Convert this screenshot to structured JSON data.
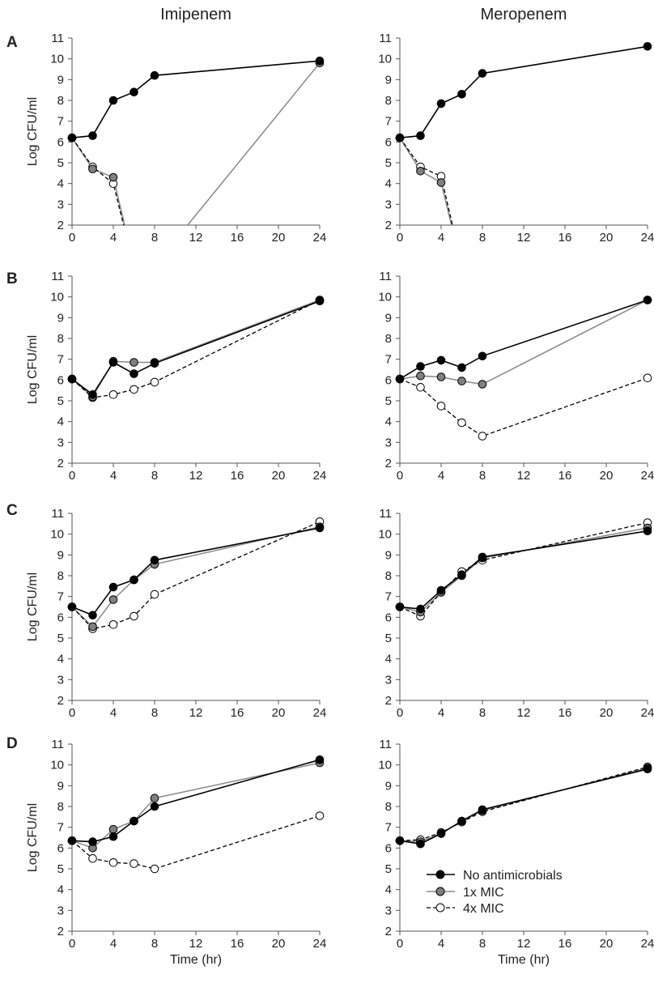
{
  "figure": {
    "column_titles": [
      "Imipenem",
      "Meropenem"
    ],
    "row_labels": [
      "A",
      "B",
      "C",
      "D"
    ],
    "ylabel": "Log CFU/ml",
    "xlabel": "Time (hr)",
    "legend": {
      "position": "bottom-right",
      "entries": [
        "No antimicrobials",
        "1x MIC",
        "4x MIC"
      ]
    },
    "colors": {
      "no_antimicrobials": "#000000",
      "mic1_line": "#888888",
      "mic1_marker": "#808080",
      "mic4_line": "#000000",
      "mic4_marker": "#ffffff",
      "axis": "#555555"
    }
  },
  "chart_data": [
    {
      "type": "line",
      "panel": "A",
      "column": "Imipenem",
      "x_ticks": [
        0,
        4,
        8,
        12,
        16,
        20,
        24
      ],
      "y_ticks": [
        2,
        3,
        4,
        5,
        6,
        7,
        8,
        9,
        10,
        11
      ],
      "xlim": [
        0,
        24
      ],
      "ylim": [
        2,
        11
      ],
      "grid": false,
      "series": [
        {
          "name": "No antimicrobials",
          "x": [
            0,
            2,
            4,
            6,
            8,
            24
          ],
          "y": [
            6.2,
            6.3,
            8.0,
            8.4,
            9.2,
            9.9
          ]
        },
        {
          "name": "1x MIC",
          "x": [
            0,
            2,
            4,
            5.1,
            11.2,
            24
          ],
          "y": [
            6.2,
            4.7,
            4.3,
            2.0,
            2.0,
            9.8
          ]
        },
        {
          "name": "4x MIC",
          "x": [
            0,
            2,
            4,
            5.0
          ],
          "y": [
            6.2,
            4.8,
            4.0,
            2.0
          ]
        }
      ]
    },
    {
      "type": "line",
      "panel": "A",
      "column": "Meropenem",
      "x_ticks": [
        0,
        4,
        8,
        12,
        16,
        20,
        24
      ],
      "y_ticks": [
        2,
        3,
        4,
        5,
        6,
        7,
        8,
        9,
        10,
        11
      ],
      "xlim": [
        0,
        24
      ],
      "ylim": [
        2,
        11
      ],
      "grid": false,
      "series": [
        {
          "name": "No antimicrobials",
          "x": [
            0,
            2,
            4,
            6,
            8,
            24
          ],
          "y": [
            6.2,
            6.3,
            7.85,
            8.3,
            9.3,
            10.6
          ]
        },
        {
          "name": "1x MIC",
          "x": [
            0,
            2,
            4,
            5.0
          ],
          "y": [
            6.2,
            4.6,
            4.05,
            2.0
          ]
        },
        {
          "name": "4x MIC",
          "x": [
            0,
            2,
            4,
            5.1
          ],
          "y": [
            6.2,
            4.8,
            4.35,
            2.0
          ]
        }
      ]
    },
    {
      "type": "line",
      "panel": "B",
      "column": "Imipenem",
      "x_ticks": [
        0,
        4,
        8,
        12,
        16,
        20,
        24
      ],
      "y_ticks": [
        2,
        3,
        4,
        5,
        6,
        7,
        8,
        9,
        10,
        11
      ],
      "xlim": [
        0,
        24
      ],
      "ylim": [
        2,
        11
      ],
      "grid": false,
      "series": [
        {
          "name": "No antimicrobials",
          "x": [
            0,
            2,
            4,
            6,
            8,
            24
          ],
          "y": [
            6.05,
            5.3,
            6.85,
            6.3,
            6.8,
            9.8
          ]
        },
        {
          "name": "1x MIC",
          "x": [
            0,
            2,
            4,
            6,
            8,
            24
          ],
          "y": [
            6.05,
            5.2,
            6.9,
            6.85,
            6.85,
            9.85
          ]
        },
        {
          "name": "4x MIC",
          "x": [
            0,
            2,
            4,
            6,
            8,
            24
          ],
          "y": [
            6.05,
            5.15,
            5.3,
            5.55,
            5.9,
            9.85
          ]
        }
      ]
    },
    {
      "type": "line",
      "panel": "B",
      "column": "Meropenem",
      "x_ticks": [
        0,
        4,
        8,
        12,
        16,
        20,
        24
      ],
      "y_ticks": [
        2,
        3,
        4,
        5,
        6,
        7,
        8,
        9,
        10,
        11
      ],
      "xlim": [
        0,
        24
      ],
      "ylim": [
        2,
        11
      ],
      "grid": false,
      "series": [
        {
          "name": "No antimicrobials",
          "x": [
            0,
            2,
            4,
            6,
            8,
            24
          ],
          "y": [
            6.05,
            6.65,
            6.95,
            6.6,
            7.15,
            9.85
          ]
        },
        {
          "name": "1x MIC",
          "x": [
            0,
            2,
            4,
            6,
            8,
            24
          ],
          "y": [
            6.05,
            6.2,
            6.15,
            5.95,
            5.8,
            9.85
          ]
        },
        {
          "name": "4x MIC",
          "x": [
            0,
            2,
            4,
            6,
            8,
            24
          ],
          "y": [
            6.05,
            5.65,
            4.75,
            3.95,
            3.3,
            6.1
          ]
        }
      ]
    },
    {
      "type": "line",
      "panel": "C",
      "column": "Imipenem",
      "x_ticks": [
        0,
        4,
        8,
        12,
        16,
        20,
        24
      ],
      "y_ticks": [
        2,
        3,
        4,
        5,
        6,
        7,
        8,
        9,
        10,
        11
      ],
      "xlim": [
        0,
        24
      ],
      "ylim": [
        2,
        11
      ],
      "grid": false,
      "series": [
        {
          "name": "No antimicrobials",
          "x": [
            0,
            2,
            4,
            6,
            8,
            24
          ],
          "y": [
            6.5,
            6.1,
            7.45,
            7.8,
            8.75,
            10.3
          ]
        },
        {
          "name": "1x MIC",
          "x": [
            0,
            2,
            4,
            6,
            8,
            24
          ],
          "y": [
            6.5,
            5.55,
            6.85,
            7.8,
            8.55,
            10.35
          ]
        },
        {
          "name": "4x MIC",
          "x": [
            0,
            2,
            4,
            6,
            8,
            24
          ],
          "y": [
            6.5,
            5.45,
            5.65,
            6.05,
            7.1,
            10.6
          ]
        }
      ]
    },
    {
      "type": "line",
      "panel": "C",
      "column": "Meropenem",
      "x_ticks": [
        0,
        4,
        8,
        12,
        16,
        20,
        24
      ],
      "y_ticks": [
        2,
        3,
        4,
        5,
        6,
        7,
        8,
        9,
        10,
        11
      ],
      "xlim": [
        0,
        24
      ],
      "ylim": [
        2,
        11
      ],
      "grid": false,
      "series": [
        {
          "name": "No antimicrobials",
          "x": [
            0,
            2,
            4,
            6,
            8,
            24
          ],
          "y": [
            6.5,
            6.4,
            7.3,
            8.05,
            8.9,
            10.15
          ]
        },
        {
          "name": "1x MIC",
          "x": [
            0,
            2,
            4,
            6,
            8,
            24
          ],
          "y": [
            6.5,
            6.25,
            7.2,
            8.0,
            8.85,
            10.3
          ]
        },
        {
          "name": "4x MIC",
          "x": [
            0,
            2,
            4,
            6,
            8,
            24
          ],
          "y": [
            6.5,
            6.05,
            7.2,
            8.2,
            8.75,
            10.55
          ]
        }
      ]
    },
    {
      "type": "line",
      "panel": "D",
      "column": "Imipenem",
      "x_ticks": [
        0,
        4,
        8,
        12,
        16,
        20,
        24
      ],
      "y_ticks": [
        2,
        3,
        4,
        5,
        6,
        7,
        8,
        9,
        10,
        11
      ],
      "xlim": [
        0,
        24
      ],
      "ylim": [
        2,
        11
      ],
      "grid": false,
      "series": [
        {
          "name": "No antimicrobials",
          "x": [
            0,
            2,
            4,
            6,
            8,
            24
          ],
          "y": [
            6.35,
            6.3,
            6.55,
            7.3,
            8.0,
            10.25
          ]
        },
        {
          "name": "1x MIC",
          "x": [
            0,
            2,
            4,
            6,
            8,
            24
          ],
          "y": [
            6.35,
            6.0,
            6.9,
            7.3,
            8.4,
            10.1
          ]
        },
        {
          "name": "4x MIC",
          "x": [
            0,
            2,
            4,
            6,
            8,
            24
          ],
          "y": [
            6.35,
            5.5,
            5.3,
            5.25,
            5.0,
            7.55
          ]
        }
      ]
    },
    {
      "type": "line",
      "panel": "D",
      "column": "Meropenem",
      "x_ticks": [
        0,
        4,
        8,
        12,
        16,
        20,
        24
      ],
      "y_ticks": [
        2,
        3,
        4,
        5,
        6,
        7,
        8,
        9,
        10,
        11
      ],
      "xlim": [
        0,
        24
      ],
      "ylim": [
        2,
        11
      ],
      "grid": false,
      "series": [
        {
          "name": "No antimicrobials",
          "x": [
            0,
            2,
            4,
            6,
            8,
            24
          ],
          "y": [
            6.35,
            6.2,
            6.7,
            7.3,
            7.85,
            9.8
          ]
        },
        {
          "name": "1x MIC",
          "x": [
            0,
            2,
            4,
            6,
            8,
            24
          ],
          "y": [
            6.35,
            6.3,
            6.7,
            7.3,
            7.8,
            9.85
          ]
        },
        {
          "name": "4x MIC",
          "x": [
            0,
            2,
            4,
            6,
            8,
            24
          ],
          "y": [
            6.35,
            6.4,
            6.75,
            7.25,
            7.75,
            9.9
          ]
        }
      ]
    }
  ]
}
